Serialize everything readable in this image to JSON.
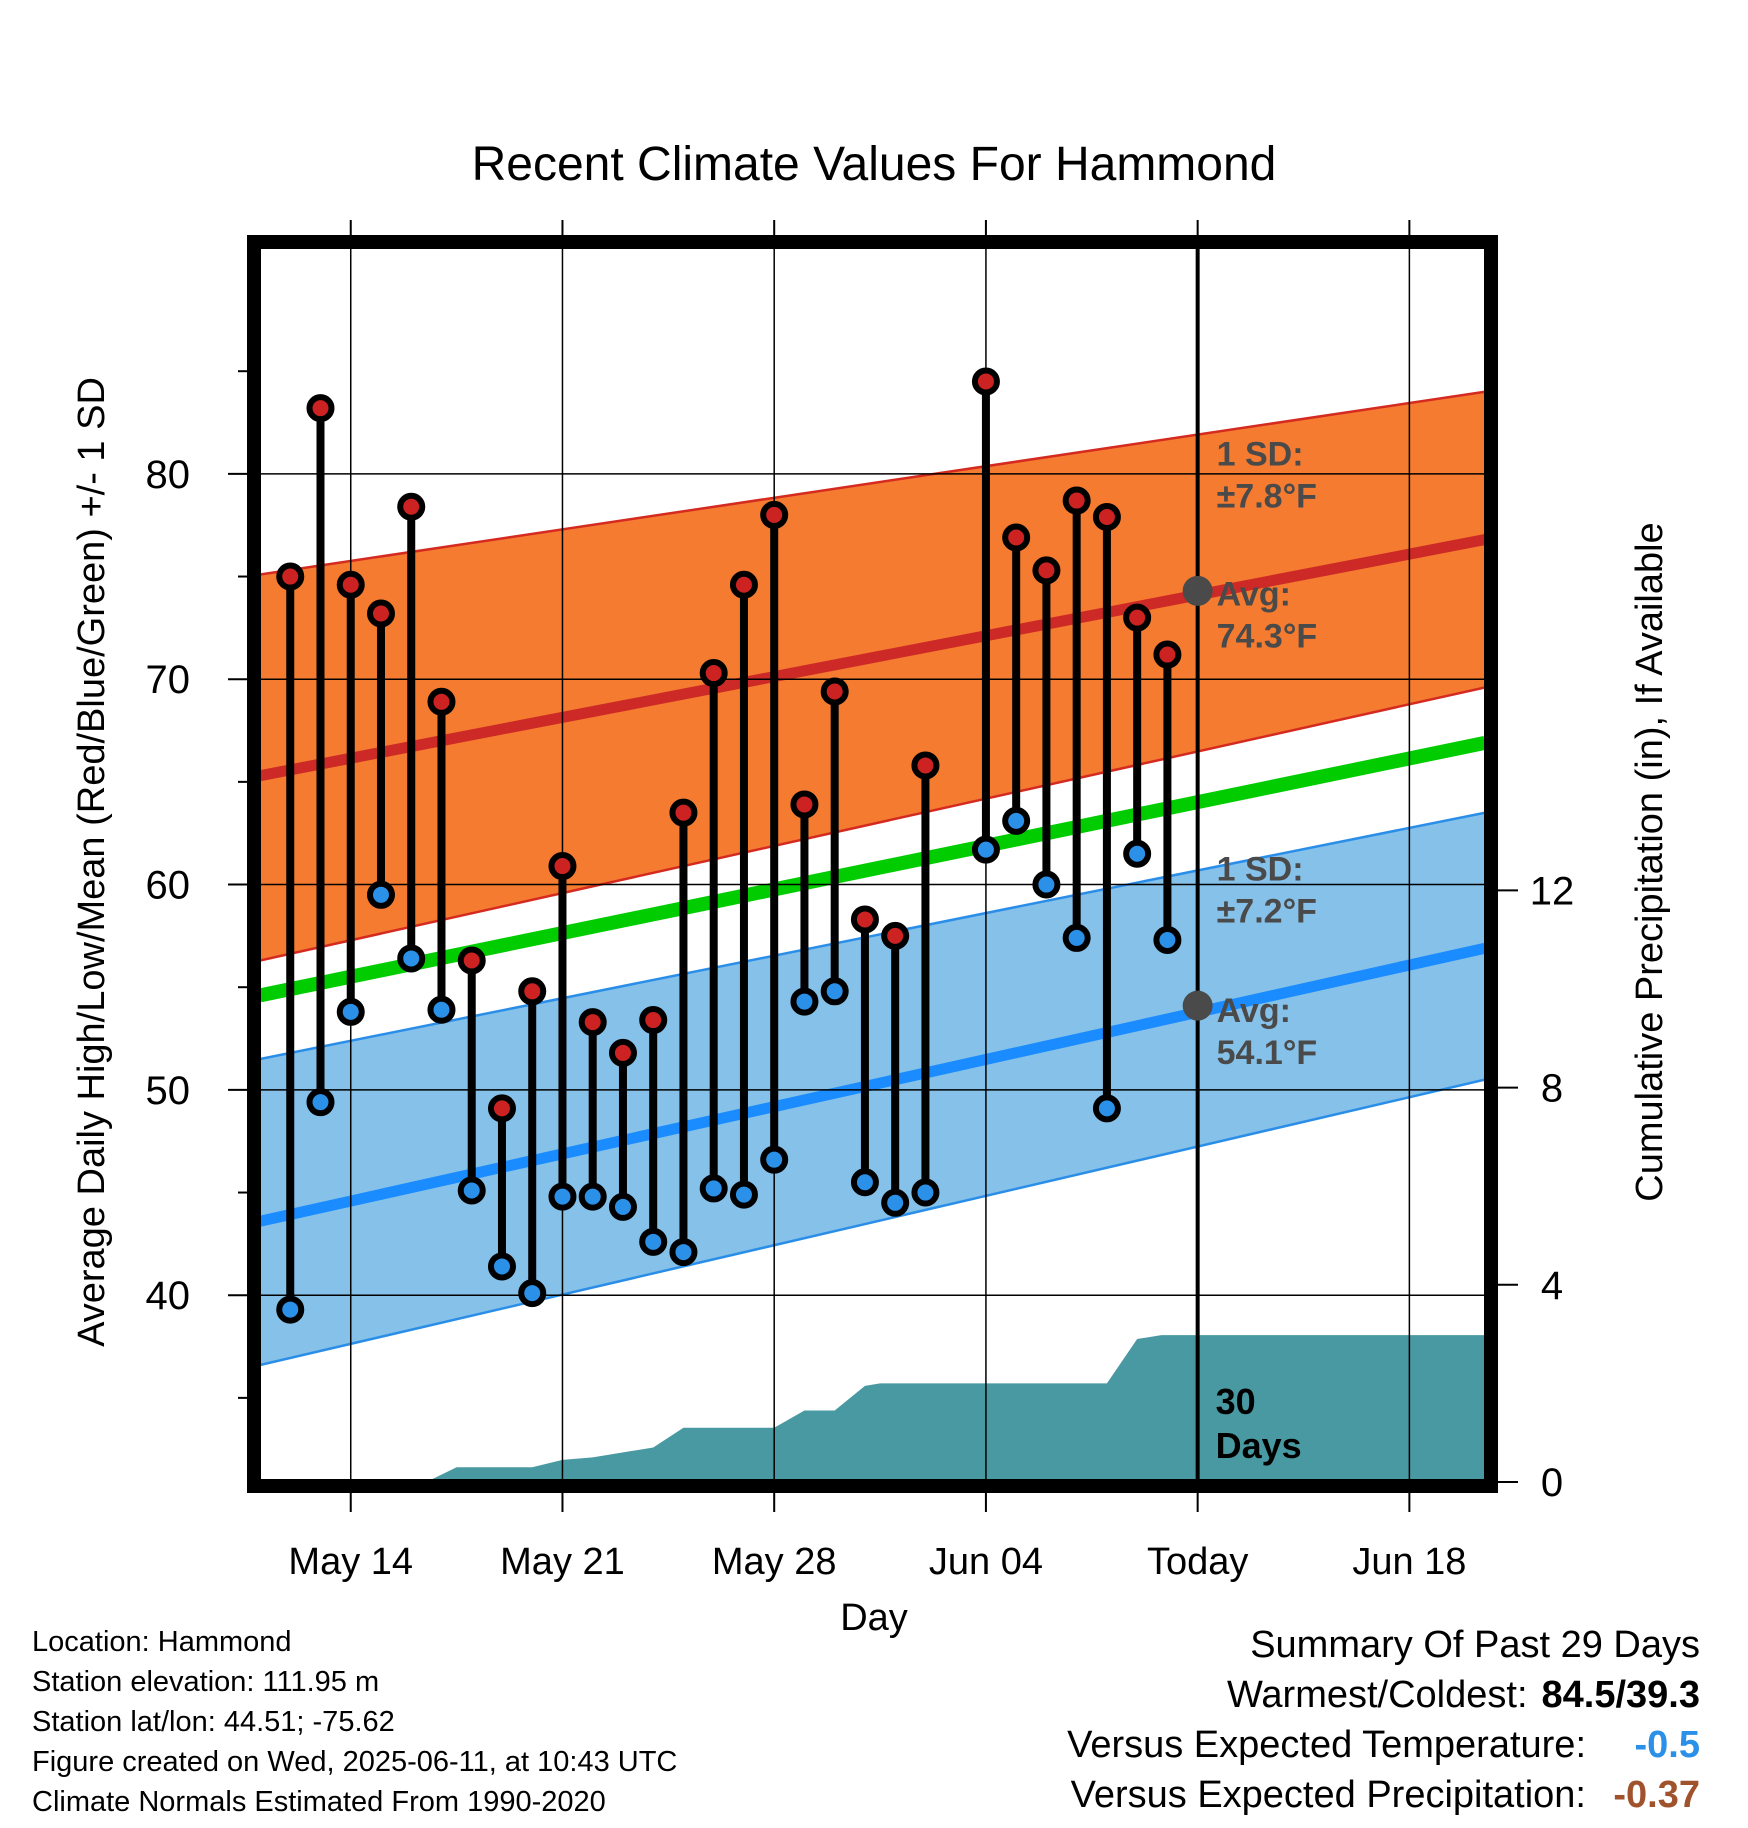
{
  "chart_data": {
    "type": "line",
    "title": "Recent Climate Values For Hammond",
    "xlabel": "Day",
    "ylabel": "Average Daily High/Low/Mean (Red/Blue/Green) +/- 1 SD",
    "ylabel_right": "Cumulative Precipitation (in), If Available",
    "ylim": [
      31,
      91
    ],
    "y_ticks": [
      40,
      50,
      60,
      70,
      80
    ],
    "y2lim": [
      0,
      16
    ],
    "y2_ticks": [
      0,
      4,
      8,
      12
    ],
    "x_ticks": [
      {
        "day": 2,
        "label": "May 14"
      },
      {
        "day": 9,
        "label": "May 21"
      },
      {
        "day": 16,
        "label": "May 28"
      },
      {
        "day": 23,
        "label": "Jun 04"
      },
      {
        "day": 30,
        "label": "Today"
      },
      {
        "day": 37,
        "label": "Jun 18"
      }
    ],
    "xlim": [
      -1,
      39.5
    ],
    "today_day": 30,
    "days_label": "30\nDays",
    "normals": {
      "high_mean": [
        65.3,
        76.8
      ],
      "high_sd_upper": [
        75.1,
        84.0
      ],
      "high_sd_lower": [
        56.3,
        69.6
      ],
      "mean": [
        54.6,
        66.9
      ],
      "low_mean": [
        43.6,
        56.9
      ],
      "low_sd_upper": [
        51.5,
        63.5
      ],
      "low_sd_lower": [
        36.6,
        50.5
      ]
    },
    "high_sd_label": "1 SD:\n±7.8°F",
    "high_avg_label": "Avg:\n74.3°F",
    "high_avg_today": 74.3,
    "low_sd_label": "1 SD:\n±7.2°F",
    "low_avg_label": "Avg:\n54.1°F",
    "low_avg_today": 54.1,
    "observations": [
      {
        "day": 0,
        "high": 75.0,
        "low": 39.3
      },
      {
        "day": 1,
        "high": 83.2,
        "low": 49.4
      },
      {
        "day": 2,
        "high": 74.6,
        "low": 53.8
      },
      {
        "day": 3,
        "high": 73.2,
        "low": 59.5
      },
      {
        "day": 4,
        "high": 78.4,
        "low": 56.4
      },
      {
        "day": 5,
        "high": 68.9,
        "low": 53.9
      },
      {
        "day": 6,
        "high": 56.3,
        "low": 45.1
      },
      {
        "day": 7,
        "high": 49.1,
        "low": 41.4
      },
      {
        "day": 8,
        "high": 54.8,
        "low": 40.1
      },
      {
        "day": 9,
        "high": 60.9,
        "low": 44.8
      },
      {
        "day": 10,
        "high": 53.3,
        "low": 44.8
      },
      {
        "day": 11,
        "high": 51.8,
        "low": 44.3
      },
      {
        "day": 12,
        "high": 53.4,
        "low": 42.6
      },
      {
        "day": 13,
        "high": 63.5,
        "low": 42.1
      },
      {
        "day": 14,
        "high": 70.3,
        "low": 45.2
      },
      {
        "day": 15,
        "high": 74.6,
        "low": 44.9
      },
      {
        "day": 16,
        "high": 78.0,
        "low": 46.6
      },
      {
        "day": 17,
        "high": 63.9,
        "low": 54.3
      },
      {
        "day": 18,
        "high": 69.4,
        "low": 54.8
      },
      {
        "day": 19,
        "high": 58.3,
        "low": 45.5
      },
      {
        "day": 20,
        "high": 57.5,
        "low": 44.5
      },
      {
        "day": 21,
        "high": 65.8,
        "low": 45.0
      },
      {
        "day": 23,
        "high": 84.5,
        "low": 61.7
      },
      {
        "day": 24,
        "high": 76.9,
        "low": 63.1
      },
      {
        "day": 25,
        "high": 75.3,
        "low": 60.0
      },
      {
        "day": 26,
        "high": 78.7,
        "low": 57.4
      },
      {
        "day": 27,
        "high": 77.9,
        "low": 49.1
      },
      {
        "day": 28,
        "high": 73.0,
        "low": 61.5
      },
      {
        "day": 29,
        "high": 71.2,
        "low": 57.3
      }
    ],
    "precip_cumulative": [
      [
        -0.5,
        0
      ],
      [
        4.5,
        0
      ],
      [
        5.5,
        0.3
      ],
      [
        8.0,
        0.3
      ],
      [
        9.0,
        0.45
      ],
      [
        10.0,
        0.5
      ],
      [
        12.0,
        0.7
      ],
      [
        13.0,
        1.1
      ],
      [
        16.0,
        1.1
      ],
      [
        17.0,
        1.45
      ],
      [
        18.0,
        1.45
      ],
      [
        19.0,
        1.95
      ],
      [
        19.5,
        2.0
      ],
      [
        27.0,
        2.0
      ],
      [
        28.0,
        2.9
      ],
      [
        28.8,
        2.98
      ],
      [
        39.5,
        2.98
      ]
    ],
    "colors": {
      "high_band": "#f47b30",
      "high_band_edge": "#d42a1f",
      "high_line": "#cd2a27",
      "mean_line": "#00cc00",
      "low_band": "#85c1e8",
      "low_band_edge": "#2a8ee8",
      "low_line": "#1a8cff",
      "precip": "#4899a1",
      "high_dot": "#cc2222",
      "low_dot": "#2a90e8",
      "avg_dot": "#4a4a4a"
    }
  },
  "footer": {
    "location": "Location: Hammond",
    "elevation": "Station elevation: 111.95 m",
    "latlon": "Station lat/lon: 44.51; -75.62",
    "created": "Figure created on Wed, 2025-06-11, at 10:43 UTC",
    "normals": "Climate Normals Estimated From 1990-2020"
  },
  "summary": {
    "title": "Summary Of Past 29 Days",
    "warm_cold_label": "Warmest/Coldest:",
    "warm_cold_value": "84.5/39.3",
    "temp_label": "Versus Expected Temperature:",
    "temp_value": "-0.5",
    "temp_color": "#2a90e8",
    "precip_label": "Versus Expected Precipitation:",
    "precip_value": "-0.37",
    "precip_color": "#a0522d"
  }
}
